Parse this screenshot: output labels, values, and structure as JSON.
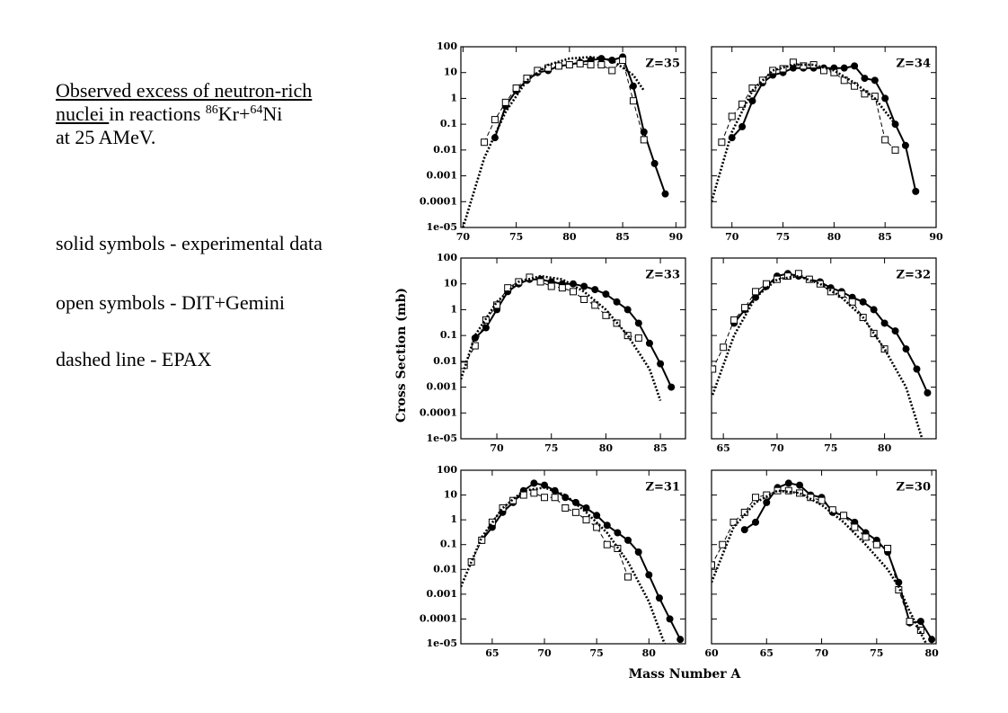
{
  "notes": {
    "heading": [
      "Observed excess of neutron-rich ",
      "nuclei "
    ],
    "reaction": [
      "in reactions ",
      "86",
      "Kr+",
      "64",
      "Ni"
    ],
    "energy": "at 25 AMeV.",
    "legend": [
      "solid symbols - experimental data",
      "open symbols - DIT+Gemini",
      "dashed line - EPAX"
    ]
  },
  "figure": {
    "ylabel": "Cross Section (mb)",
    "xlabel": "Mass Number A"
  },
  "chart_data": [
    {
      "type": "line",
      "annotation": "Z=35",
      "log_y": true,
      "xlim": [
        69.8,
        90.9
      ],
      "xticks": [
        70,
        75,
        80,
        85,
        90
      ],
      "ylim": [
        1e-05,
        100
      ],
      "yticks": [
        100,
        10,
        1,
        0.1,
        0.01,
        0.001,
        0.0001,
        {
          "value": 1e-05,
          "label": "1e-05"
        }
      ],
      "series": [
        {
          "color": "#000",
          "line": "solid",
          "marker": "filled-circle",
          "x": [
            73,
            74,
            75,
            76,
            77,
            78,
            79,
            80,
            81,
            82,
            83,
            84,
            85,
            86,
            87,
            88,
            89
          ],
          "values": [
            0.03,
            0.5,
            2,
            5,
            10,
            12,
            18,
            20,
            25,
            30,
            35,
            30,
            40,
            3,
            0.05,
            0.003,
            0.0002
          ]
        },
        {
          "color": "#000",
          "line": "dashed",
          "marker": "open-square",
          "x": [
            72,
            73,
            74,
            75,
            76,
            77,
            78,
            79,
            80,
            81,
            82,
            83,
            84,
            85,
            86,
            87
          ],
          "values": [
            0.02,
            0.15,
            0.7,
            2.5,
            6,
            12,
            15,
            18,
            20,
            22,
            20,
            20,
            12,
            30,
            0.8,
            0.025
          ]
        },
        {
          "color": "#000",
          "line": "dotted",
          "marker": "none",
          "x": [
            70,
            72,
            74,
            76,
            78,
            80,
            82,
            84,
            86,
            87
          ],
          "values": [
            1e-05,
            0.005,
            0.3,
            5,
            20,
            35,
            40,
            30,
            8,
            2
          ]
        }
      ]
    },
    {
      "type": "line",
      "annotation": "Z=34",
      "log_y": true,
      "xlim": [
        68,
        90
      ],
      "xticks": [
        70,
        75,
        80,
        85,
        90
      ],
      "ylim": [
        1e-05,
        100
      ],
      "yticks": [
        100,
        10,
        1,
        0.1,
        0.01,
        0.001,
        0.0001,
        {
          "value": 1e-05,
          "label": "1e-05"
        }
      ],
      "series": [
        {
          "color": "#000",
          "line": "solid",
          "marker": "filled-circle",
          "x": [
            70,
            71,
            72,
            73,
            74,
            75,
            76,
            77,
            78,
            79,
            80,
            81,
            82,
            83,
            84,
            85,
            86,
            87,
            88
          ],
          "values": [
            0.03,
            0.08,
            0.8,
            4,
            8,
            10,
            15,
            15,
            15,
            15,
            15,
            15,
            18,
            6,
            5,
            1,
            0.1,
            0.015,
            0.00025
          ]
        },
        {
          "color": "#000",
          "line": "dashed",
          "marker": "open-square",
          "x": [
            69,
            70,
            71,
            72,
            73,
            74,
            75,
            76,
            77,
            78,
            79,
            80,
            81,
            82,
            83,
            84,
            85,
            86
          ],
          "values": [
            0.02,
            0.2,
            0.6,
            2.5,
            5,
            12,
            14,
            25,
            18,
            20,
            12,
            10,
            5,
            3,
            1.5,
            1.2,
            0.025,
            0.01
          ]
        },
        {
          "color": "#000",
          "line": "dotted",
          "marker": "none",
          "x": [
            68,
            70,
            72,
            74,
            76,
            78,
            80,
            82,
            84,
            86
          ],
          "values": [
            0.0001,
            0.05,
            2,
            12,
            20,
            20,
            12,
            4,
            1,
            0.1
          ]
        }
      ]
    },
    {
      "type": "line",
      "annotation": "Z=33",
      "log_y": true,
      "xlim": [
        66.7,
        87.3
      ],
      "xticks": [
        70,
        75,
        80,
        85
      ],
      "ylim": [
        1e-05,
        100
      ],
      "yticks": [
        100,
        10,
        1,
        0.1,
        0.01,
        0.001,
        0.0001,
        {
          "value": 1e-05,
          "label": "1e-05"
        }
      ],
      "series": [
        {
          "color": "#000",
          "line": "solid",
          "marker": "filled-circle",
          "x": [
            68,
            69,
            70,
            71,
            72,
            73,
            74,
            75,
            76,
            77,
            78,
            79,
            80,
            81,
            82,
            83,
            84,
            85,
            86
          ],
          "values": [
            0.08,
            0.2,
            1,
            5,
            10,
            15,
            15,
            12,
            10,
            10,
            8,
            6,
            4,
            2,
            1,
            0.3,
            0.05,
            0.008,
            0.001
          ]
        },
        {
          "color": "#000",
          "line": "dashed",
          "marker": "open-square",
          "x": [
            67,
            68,
            69,
            70,
            71,
            72,
            73,
            74,
            75,
            76,
            77,
            78,
            79,
            80,
            81,
            82,
            83
          ],
          "values": [
            0.007,
            0.04,
            0.4,
            1.5,
            7,
            12,
            18,
            12,
            8,
            7,
            5,
            2.5,
            1.5,
            0.6,
            0.3,
            0.1,
            0.08
          ]
        },
        {
          "color": "#000",
          "line": "dotted",
          "marker": "none",
          "x": [
            66.7,
            68,
            70,
            72,
            74,
            76,
            78,
            80,
            82,
            84,
            85
          ],
          "values": [
            0.002,
            0.1,
            2,
            12,
            20,
            15,
            5,
            1,
            0.1,
            0.005,
            0.0003
          ]
        }
      ]
    },
    {
      "type": "line",
      "annotation": "Z=32",
      "log_y": true,
      "xlim": [
        63.9,
        84.8
      ],
      "xticks": [
        65,
        70,
        75,
        80
      ],
      "ylim": [
        1e-05,
        100
      ],
      "yticks": [
        100,
        10,
        1,
        0.1,
        0.01,
        0.001,
        0.0001,
        {
          "value": 1e-05,
          "label": "1e-05"
        }
      ],
      "series": [
        {
          "color": "#000",
          "line": "solid",
          "marker": "filled-circle",
          "x": [
            66,
            67,
            68,
            69,
            70,
            71,
            72,
            73,
            74,
            75,
            76,
            77,
            78,
            79,
            80,
            81,
            82,
            83,
            84
          ],
          "values": [
            0.3,
            1,
            3,
            8,
            20,
            25,
            20,
            15,
            12,
            7,
            5,
            3,
            2,
            1,
            0.3,
            0.15,
            0.03,
            0.005,
            0.0006
          ]
        },
        {
          "color": "#000",
          "line": "dashed",
          "marker": "open-square",
          "x": [
            64,
            65,
            66,
            67,
            68,
            69,
            70,
            71,
            72,
            73,
            74,
            75,
            76,
            77,
            78,
            79,
            80
          ],
          "values": [
            0.005,
            0.035,
            0.4,
            1.2,
            5,
            10,
            15,
            20,
            25,
            15,
            10,
            5,
            4,
            2,
            0.5,
            0.12,
            0.03
          ]
        },
        {
          "color": "#000",
          "line": "dotted",
          "marker": "none",
          "x": [
            64,
            66,
            68,
            70,
            72,
            74,
            76,
            78,
            80,
            82,
            83.5
          ],
          "values": [
            0.0005,
            0.1,
            3,
            15,
            20,
            10,
            3,
            0.5,
            0.03,
            0.001,
            1e-05
          ]
        }
      ]
    },
    {
      "type": "line",
      "annotation": "Z=31",
      "log_y": true,
      "xlim": [
        62,
        83.5
      ],
      "xticks": [
        65,
        70,
        75,
        80
      ],
      "ylim": [
        1e-05,
        100
      ],
      "yticks": [
        100,
        10,
        1,
        0.1,
        0.01,
        0.001,
        0.0001,
        {
          "value": 1e-05,
          "label": "1e-05"
        }
      ],
      "series": [
        {
          "color": "#000",
          "line": "solid",
          "marker": "filled-circle",
          "x": [
            64,
            65,
            66,
            67,
            68,
            69,
            70,
            71,
            72,
            73,
            74,
            75,
            76,
            77,
            78,
            79,
            80,
            81,
            82,
            83
          ],
          "values": [
            0.15,
            0.5,
            2,
            5,
            15,
            30,
            25,
            15,
            8,
            5,
            3,
            1.5,
            0.6,
            0.3,
            0.15,
            0.05,
            0.006,
            0.0007,
            0.0001,
            1.5e-05
          ]
        },
        {
          "color": "#000",
          "line": "dashed",
          "marker": "open-square",
          "x": [
            63,
            64,
            65,
            66,
            67,
            68,
            69,
            70,
            71,
            72,
            73,
            74,
            75,
            76,
            77,
            78
          ],
          "values": [
            0.02,
            0.15,
            0.8,
            3,
            6,
            10,
            12,
            8,
            8,
            3,
            2,
            1,
            0.5,
            0.1,
            0.07,
            0.005
          ]
        },
        {
          "color": "#000",
          "line": "dotted",
          "marker": "none",
          "x": [
            62,
            64,
            66,
            68,
            70,
            72,
            74,
            76,
            78,
            80,
            81.5
          ],
          "values": [
            0.002,
            0.2,
            3,
            15,
            20,
            10,
            2,
            0.3,
            0.02,
            0.0005,
            1e-05
          ]
        }
      ]
    },
    {
      "type": "line",
      "annotation": "Z=30",
      "log_y": true,
      "xlim": [
        60,
        80.4
      ],
      "xticks": [
        60,
        65,
        70,
        75,
        80
      ],
      "ylim": [
        1e-05,
        100
      ],
      "yticks": [
        100,
        10,
        1,
        0.1,
        0.01,
        0.001,
        0.0001,
        {
          "value": 1e-05,
          "label": "1e-05"
        }
      ],
      "series": [
        {
          "color": "#000",
          "line": "solid",
          "marker": "filled-circle",
          "x": [
            63,
            64,
            65,
            66,
            67,
            68,
            69,
            70,
            71,
            72,
            73,
            74,
            75,
            76,
            77,
            78,
            79,
            80
          ],
          "values": [
            0.4,
            0.8,
            5,
            20,
            30,
            25,
            10,
            8,
            2,
            1.5,
            0.8,
            0.3,
            0.15,
            0.05,
            0.003,
            7e-05,
            8e-05,
            1.5e-05
          ]
        },
        {
          "color": "#000",
          "line": "dashed",
          "marker": "open-square",
          "x": [
            60,
            61,
            62,
            63,
            64,
            65,
            66,
            67,
            68,
            69,
            70,
            71,
            72,
            73,
            74,
            75,
            76,
            77,
            78,
            79
          ],
          "values": [
            0.015,
            0.1,
            0.8,
            2,
            8,
            10,
            15,
            15,
            12,
            8,
            6,
            2.5,
            1.5,
            0.5,
            0.2,
            0.1,
            0.07,
            0.0015,
            8e-05,
            3.5e-05
          ]
        },
        {
          "color": "#000",
          "line": "dotted",
          "marker": "none",
          "x": [
            60,
            62,
            64,
            66,
            68,
            70,
            72,
            74,
            76,
            77,
            78,
            79.5
          ],
          "values": [
            0.003,
            0.5,
            5,
            15,
            12,
            4,
            0.8,
            0.1,
            0.01,
            0.002,
            0.0002,
            1e-05
          ]
        }
      ]
    }
  ]
}
